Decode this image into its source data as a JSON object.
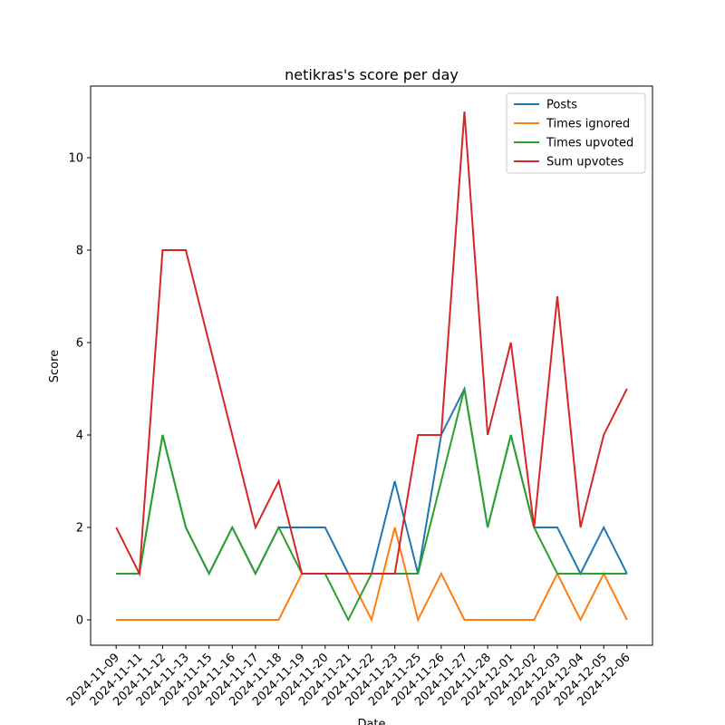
{
  "chart_data": {
    "type": "line",
    "title": "netikras's score per day",
    "x_label": "Date",
    "y_label": "Score",
    "categories": [
      "2024-11-09",
      "2024-11-11",
      "2024-11-12",
      "2024-11-13",
      "2024-11-15",
      "2024-11-16",
      "2024-11-17",
      "2024-11-18",
      "2024-11-19",
      "2024-11-20",
      "2024-11-21",
      "2024-11-22",
      "2024-11-23",
      "2024-11-25",
      "2024-11-26",
      "2024-11-27",
      "2024-11-28",
      "2024-12-01",
      "2024-12-02",
      "2024-12-03",
      "2024-12-04",
      "2024-12-05",
      "2024-12-06"
    ],
    "series": [
      {
        "name": "Posts",
        "color": "#1f77b4",
        "values": [
          1,
          1,
          4,
          2,
          1,
          2,
          1,
          2,
          2,
          2,
          1,
          1,
          3,
          1,
          4,
          5,
          2,
          4,
          2,
          2,
          1,
          2,
          1
        ]
      },
      {
        "name": "Times ignored",
        "color": "#ff7f0e",
        "values": [
          0,
          0,
          0,
          0,
          0,
          0,
          0,
          0,
          1,
          1,
          1,
          0,
          2,
          0,
          1,
          0,
          0,
          0,
          0,
          1,
          0,
          1,
          0
        ]
      },
      {
        "name": "Times upvoted",
        "color": "#2ca02c",
        "values": [
          1,
          1,
          4,
          2,
          1,
          2,
          1,
          2,
          1,
          1,
          0,
          1,
          1,
          1,
          3,
          5,
          2,
          4,
          2,
          1,
          1,
          1,
          1
        ]
      },
      {
        "name": "Sum upvotes",
        "color": "#d62728",
        "values": [
          2,
          1,
          8,
          8,
          6,
          4,
          2,
          3,
          1,
          1,
          1,
          1,
          1,
          4,
          4,
          11,
          4,
          6,
          2,
          7,
          2,
          4,
          5
        ]
      }
    ],
    "ylim": [
      -0.55,
      11.55
    ],
    "yticks": [
      0,
      2,
      4,
      6,
      8,
      10
    ],
    "legend": "upper right"
  }
}
